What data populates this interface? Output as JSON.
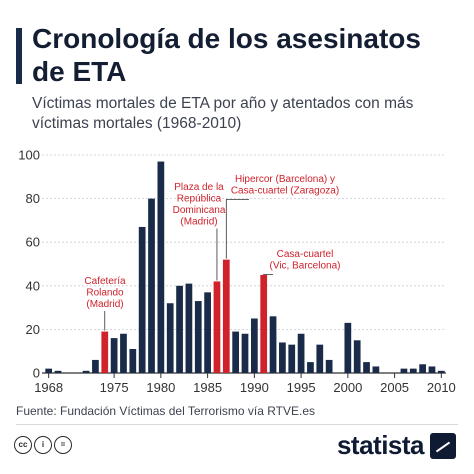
{
  "header": {
    "title": "Cronología de los asesinatos de ETA",
    "subtitle": "Víctimas mortales de ETA por año y atentados con más víctimas mortales (1968-2010)"
  },
  "colors": {
    "default_bar": "#1a2b4a",
    "highlight_bar": "#d0222b",
    "annotation_text": "#d0222b",
    "text": "#1f2937"
  },
  "chart_data": {
    "type": "bar",
    "title": "Cronología de los asesinatos de ETA",
    "subtitle": "Víctimas mortales de ETA por año y atentados con más víctimas mortales (1968-2010)",
    "xlabel": "",
    "ylabel": "",
    "ylim": [
      0,
      100
    ],
    "yticks": [
      0,
      20,
      40,
      60,
      80,
      100
    ],
    "xticks": [
      1968,
      1975,
      1980,
      1985,
      1990,
      1995,
      2000,
      2005,
      2010
    ],
    "grid": true,
    "categories": [
      1968,
      1969,
      1970,
      1971,
      1972,
      1973,
      1974,
      1975,
      1976,
      1977,
      1978,
      1979,
      1980,
      1981,
      1982,
      1983,
      1984,
      1985,
      1986,
      1987,
      1988,
      1989,
      1990,
      1991,
      1992,
      1993,
      1994,
      1995,
      1996,
      1997,
      1998,
      1999,
      2000,
      2001,
      2002,
      2003,
      2004,
      2005,
      2006,
      2007,
      2008,
      2009,
      2010
    ],
    "values": [
      2,
      1,
      0,
      0,
      1,
      6,
      19,
      16,
      18,
      11,
      67,
      80,
      97,
      32,
      40,
      41,
      33,
      37,
      42,
      52,
      19,
      18,
      25,
      45,
      26,
      14,
      13,
      18,
      5,
      13,
      6,
      0,
      23,
      15,
      5,
      3,
      0,
      0,
      2,
      2,
      4,
      3,
      1
    ],
    "highlighted": [
      1974,
      1986,
      1987,
      1991
    ],
    "annotations": [
      {
        "year": 1974,
        "lines": [
          "Cafetería",
          "Rolando",
          "(Madrid)"
        ]
      },
      {
        "year": 1986,
        "lines": [
          "Plaza de la",
          "República",
          "Dominicana",
          "(Madrid)"
        ]
      },
      {
        "year": 1987,
        "lines": [
          "Hipercor (Barcelona) y",
          "Casa-cuartel (Zaragoza)"
        ]
      },
      {
        "year": 1991,
        "lines": [
          "Casa-cuartel",
          "(Vic, Barcelona)"
        ]
      }
    ]
  },
  "footer": {
    "source": "Fuente: Fundación Víctimas del Terrorismo vía RTVE.es",
    "brand": "statista",
    "license_icons": [
      "cc-icon",
      "by-icon",
      "nd-icon"
    ]
  }
}
